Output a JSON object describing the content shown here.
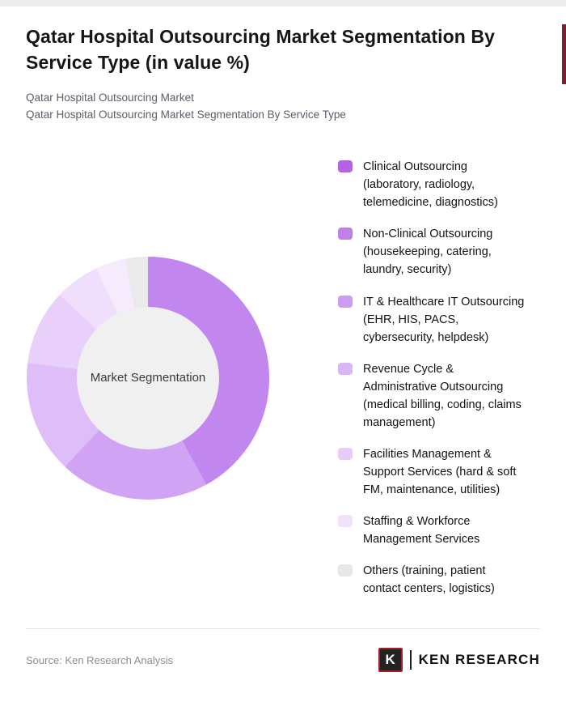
{
  "page": {
    "title": "Qatar Hospital Outsourcing Market Segmentation By Service Type (in value %)",
    "subtitle1": "Qatar Hospital Outsourcing Market",
    "subtitle2": "Qatar Hospital Outsourcing Market Segmentation By Service Type",
    "source": "Source: Ken Research Analysis",
    "brand": {
      "initial": "K",
      "name": "KEN RESEARCH"
    },
    "accent_color": "#7d1f33"
  },
  "chart_data": {
    "type": "pie",
    "variant": "donut",
    "title": "Qatar Hospital Outsourcing Market Segmentation By Service Type (in value %)",
    "unit": "value %",
    "center_label": "Market Segmentation",
    "legend_position": "right",
    "start_angle_deg": 0,
    "direction": "clockwise",
    "segments": [
      {
        "label": "Clinical Outsourcing (laboratory, radiology, telemedicine, diagnostics)",
        "value": 42,
        "color": "#c287ef"
      },
      {
        "label": "Non-Clinical Outsourcing (housekeeping, catering, laundry, security)",
        "value": 20,
        "color": "#d1a3f4"
      },
      {
        "label": "IT & Healthcare IT Outsourcing (EHR, HIS, PACS, cybersecurity, helpdesk)",
        "value": 15,
        "color": "#dfbdf8"
      },
      {
        "label": "Revenue Cycle & Administrative Outsourcing (medical billing, coding, claims management)",
        "value": 10,
        "color": "#e8d0fa"
      },
      {
        "label": "Facilities Management & Support Services (hard & soft FM, maintenance, utilities)",
        "value": 6,
        "color": "#efdffc"
      },
      {
        "label": "Staffing & Workforce Management Services",
        "value": 4,
        "color": "#f5ebfd"
      },
      {
        "label": "Others (training, patient contact centers, logistics)",
        "value": 3,
        "color": "#eaeaea"
      }
    ],
    "legend_swatch_colors": [
      "#b563e4",
      "#c07fe9",
      "#cd9bef",
      "#dbb6f4",
      "#e7ccf8",
      "#f0e2fb",
      "#e7e7e7"
    ]
  }
}
